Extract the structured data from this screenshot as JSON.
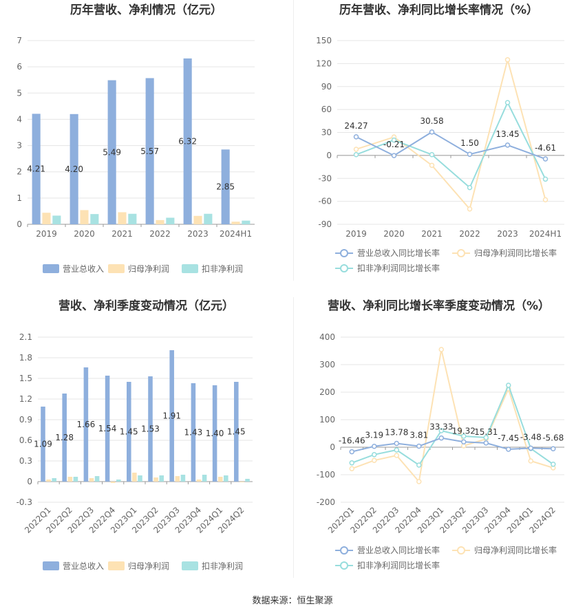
{
  "colors": {
    "revenue": "#8eafdd",
    "net_profit": "#fde2b4",
    "deducted_profit": "#a8e2e2",
    "revenue_line": "#8eafdd",
    "net_profit_line": "#fde2b4",
    "deducted_profit_line": "#97dddd",
    "grid": "#e5e5e5",
    "axis": "#cccccc"
  },
  "footer": {
    "source": "数据来源：恒生聚源"
  },
  "chart_data": [
    {
      "type": "bar",
      "title": "历年营收、净利情况（亿元）",
      "categories": [
        "2019",
        "2020",
        "2021",
        "2022",
        "2023",
        "2024H1"
      ],
      "ylim": [
        0,
        7
      ],
      "yticks": [
        0,
        1,
        2,
        3,
        4,
        5,
        6,
        7
      ],
      "series": [
        {
          "name": "营业总收入",
          "values": [
            4.21,
            4.2,
            5.49,
            5.57,
            6.32,
            2.85
          ],
          "labels": [
            "4.21",
            "4.20",
            "5.49",
            "5.57",
            "6.32",
            "2.85"
          ]
        },
        {
          "name": "归母净利润",
          "values": [
            0.44,
            0.54,
            0.46,
            0.16,
            0.32,
            0.1
          ]
        },
        {
          "name": "扣非净利润",
          "values": [
            0.33,
            0.39,
            0.4,
            0.25,
            0.4,
            0.14
          ]
        }
      ],
      "legend": "bottom",
      "grid": true
    },
    {
      "type": "line",
      "title": "历年营收、净利同比增长率情况（%）",
      "categories": [
        "2019",
        "2020",
        "2021",
        "2022",
        "2023",
        "2024H1"
      ],
      "ylim": [
        -90,
        150
      ],
      "yticks": [
        -90,
        -60,
        -30,
        0,
        30,
        60,
        90,
        120,
        150
      ],
      "series": [
        {
          "name": "营业总收入同比增长率",
          "values": [
            24.27,
            -0.21,
            30.58,
            1.5,
            13.45,
            -4.61
          ],
          "labels": [
            "24.27",
            "-0.21",
            "30.58",
            "1.50",
            "13.45",
            "-4.61"
          ]
        },
        {
          "name": "归母净利润同比增长率",
          "values": [
            8,
            24,
            -13,
            -70,
            125,
            -58
          ]
        },
        {
          "name": "扣非净利润同比增长率",
          "values": [
            1,
            20,
            1,
            -42,
            69,
            -31
          ]
        }
      ],
      "legend": "bottom",
      "grid": true
    },
    {
      "type": "bar",
      "title": "营收、净利季度变动情况（亿元）",
      "categories": [
        "2022Q1",
        "2022Q2",
        "2022Q3",
        "2022Q4",
        "2023Q1",
        "2023Q2",
        "2023Q3",
        "2023Q4",
        "2024Q1",
        "2024Q2"
      ],
      "ylim": [
        -0.3,
        2.1
      ],
      "yticks": [
        -0.3,
        0,
        0.3,
        0.6,
        0.9,
        1.2,
        1.5,
        1.8,
        2.1
      ],
      "series": [
        {
          "name": "营业总收入",
          "values": [
            1.09,
            1.28,
            1.66,
            1.54,
            1.45,
            1.53,
            1.91,
            1.43,
            1.4,
            1.45
          ],
          "labels": [
            "1.09",
            "1.28",
            "1.66",
            "1.54",
            "1.45",
            "1.53",
            "1.91",
            "1.43",
            "1.40",
            "1.45"
          ]
        },
        {
          "name": "归母净利润",
          "values": [
            0.03,
            0.07,
            0.05,
            -0.02,
            0.13,
            0.06,
            0.08,
            0.03,
            0.07,
            -0.01
          ]
        },
        {
          "name": "扣非净利润",
          "values": [
            0.05,
            0.07,
            0.08,
            0.03,
            0.09,
            0.09,
            0.1,
            0.1,
            0.09,
            0.04
          ]
        }
      ],
      "legend": "bottom",
      "grid": true
    },
    {
      "type": "line",
      "title": "营收、净利同比增长率季度变动情况（%）",
      "categories": [
        "2022Q1",
        "2022Q2",
        "2022Q3",
        "2022Q4",
        "2023Q1",
        "2023Q2",
        "2023Q3",
        "2023Q4",
        "2024Q1",
        "2024Q2"
      ],
      "ylim": [
        -200,
        400
      ],
      "yticks": [
        -200,
        -100,
        0,
        100,
        200,
        300,
        400
      ],
      "series": [
        {
          "name": "营业总收入同比增长率",
          "values": [
            -16.46,
            3.19,
            13.78,
            3.81,
            33.33,
            19.32,
            15.31,
            -7.45,
            -3.48,
            -5.68
          ],
          "labels": [
            "-16.46",
            "3.19",
            "13.78",
            "3.81",
            "33.33",
            "19.32",
            "15.31",
            "-7.45",
            "-3.48",
            "-5.68"
          ]
        },
        {
          "name": "归母净利润同比增长率",
          "values": [
            -78,
            -48,
            -30,
            -125,
            355,
            5,
            30,
            212,
            -50,
            -75
          ]
        },
        {
          "name": "扣非净利润同比增长率",
          "values": [
            -57,
            -27,
            -10,
            -65,
            60,
            40,
            35,
            225,
            -5,
            -62
          ]
        }
      ],
      "legend": "bottom",
      "grid": true
    }
  ]
}
